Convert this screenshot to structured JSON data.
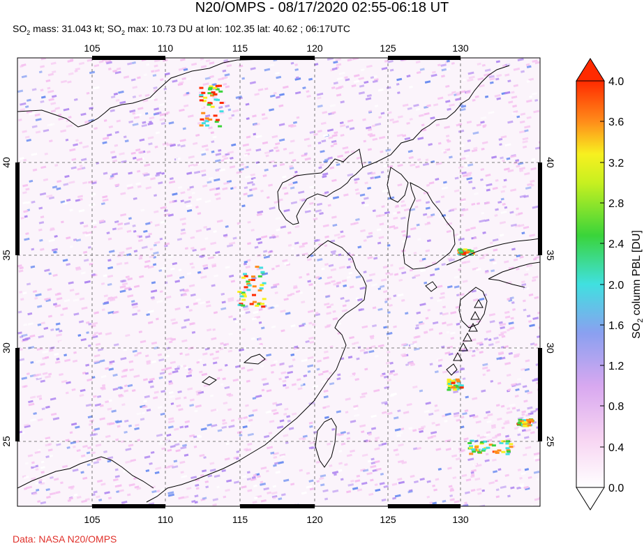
{
  "title": "N20/OMPS - 08/17/2020 02:55-06:18 UT",
  "subtitle": {
    "so2_prefix": "SO",
    "so2_sub": "2",
    "mass_text": " mass: 31.043 kt; SO",
    "max_text": " max: 10.73 DU at lon: 102.35 lat: 40.62 ; 06:17UTC"
  },
  "credit": "Data: NASA N20/OMPS",
  "map": {
    "lon_ticks": [
      "105",
      "110",
      "115",
      "120",
      "125",
      "130"
    ],
    "lat_ticks": [
      "40",
      "35",
      "30",
      "25"
    ],
    "volcano_markers": 6
  },
  "colorbar": {
    "label_prefix": "SO",
    "label_sub": "2",
    "label_suffix": " column PBL [DU]",
    "ticks": [
      "4.0",
      "3.6",
      "3.2",
      "2.8",
      "2.4",
      "2.0",
      "1.6",
      "1.2",
      "0.8",
      "0.4",
      "0.0"
    ],
    "colors": {
      "top": "#ff2a00",
      "orange": "#ff8c1a",
      "yellow": "#f7f020",
      "green": "#3ad43a",
      "cyan": "#40e0e0",
      "blue": "#6a8cf0",
      "violet": "#b088f0",
      "pink": "#f5c0f0",
      "white": "#ffffff"
    }
  }
}
